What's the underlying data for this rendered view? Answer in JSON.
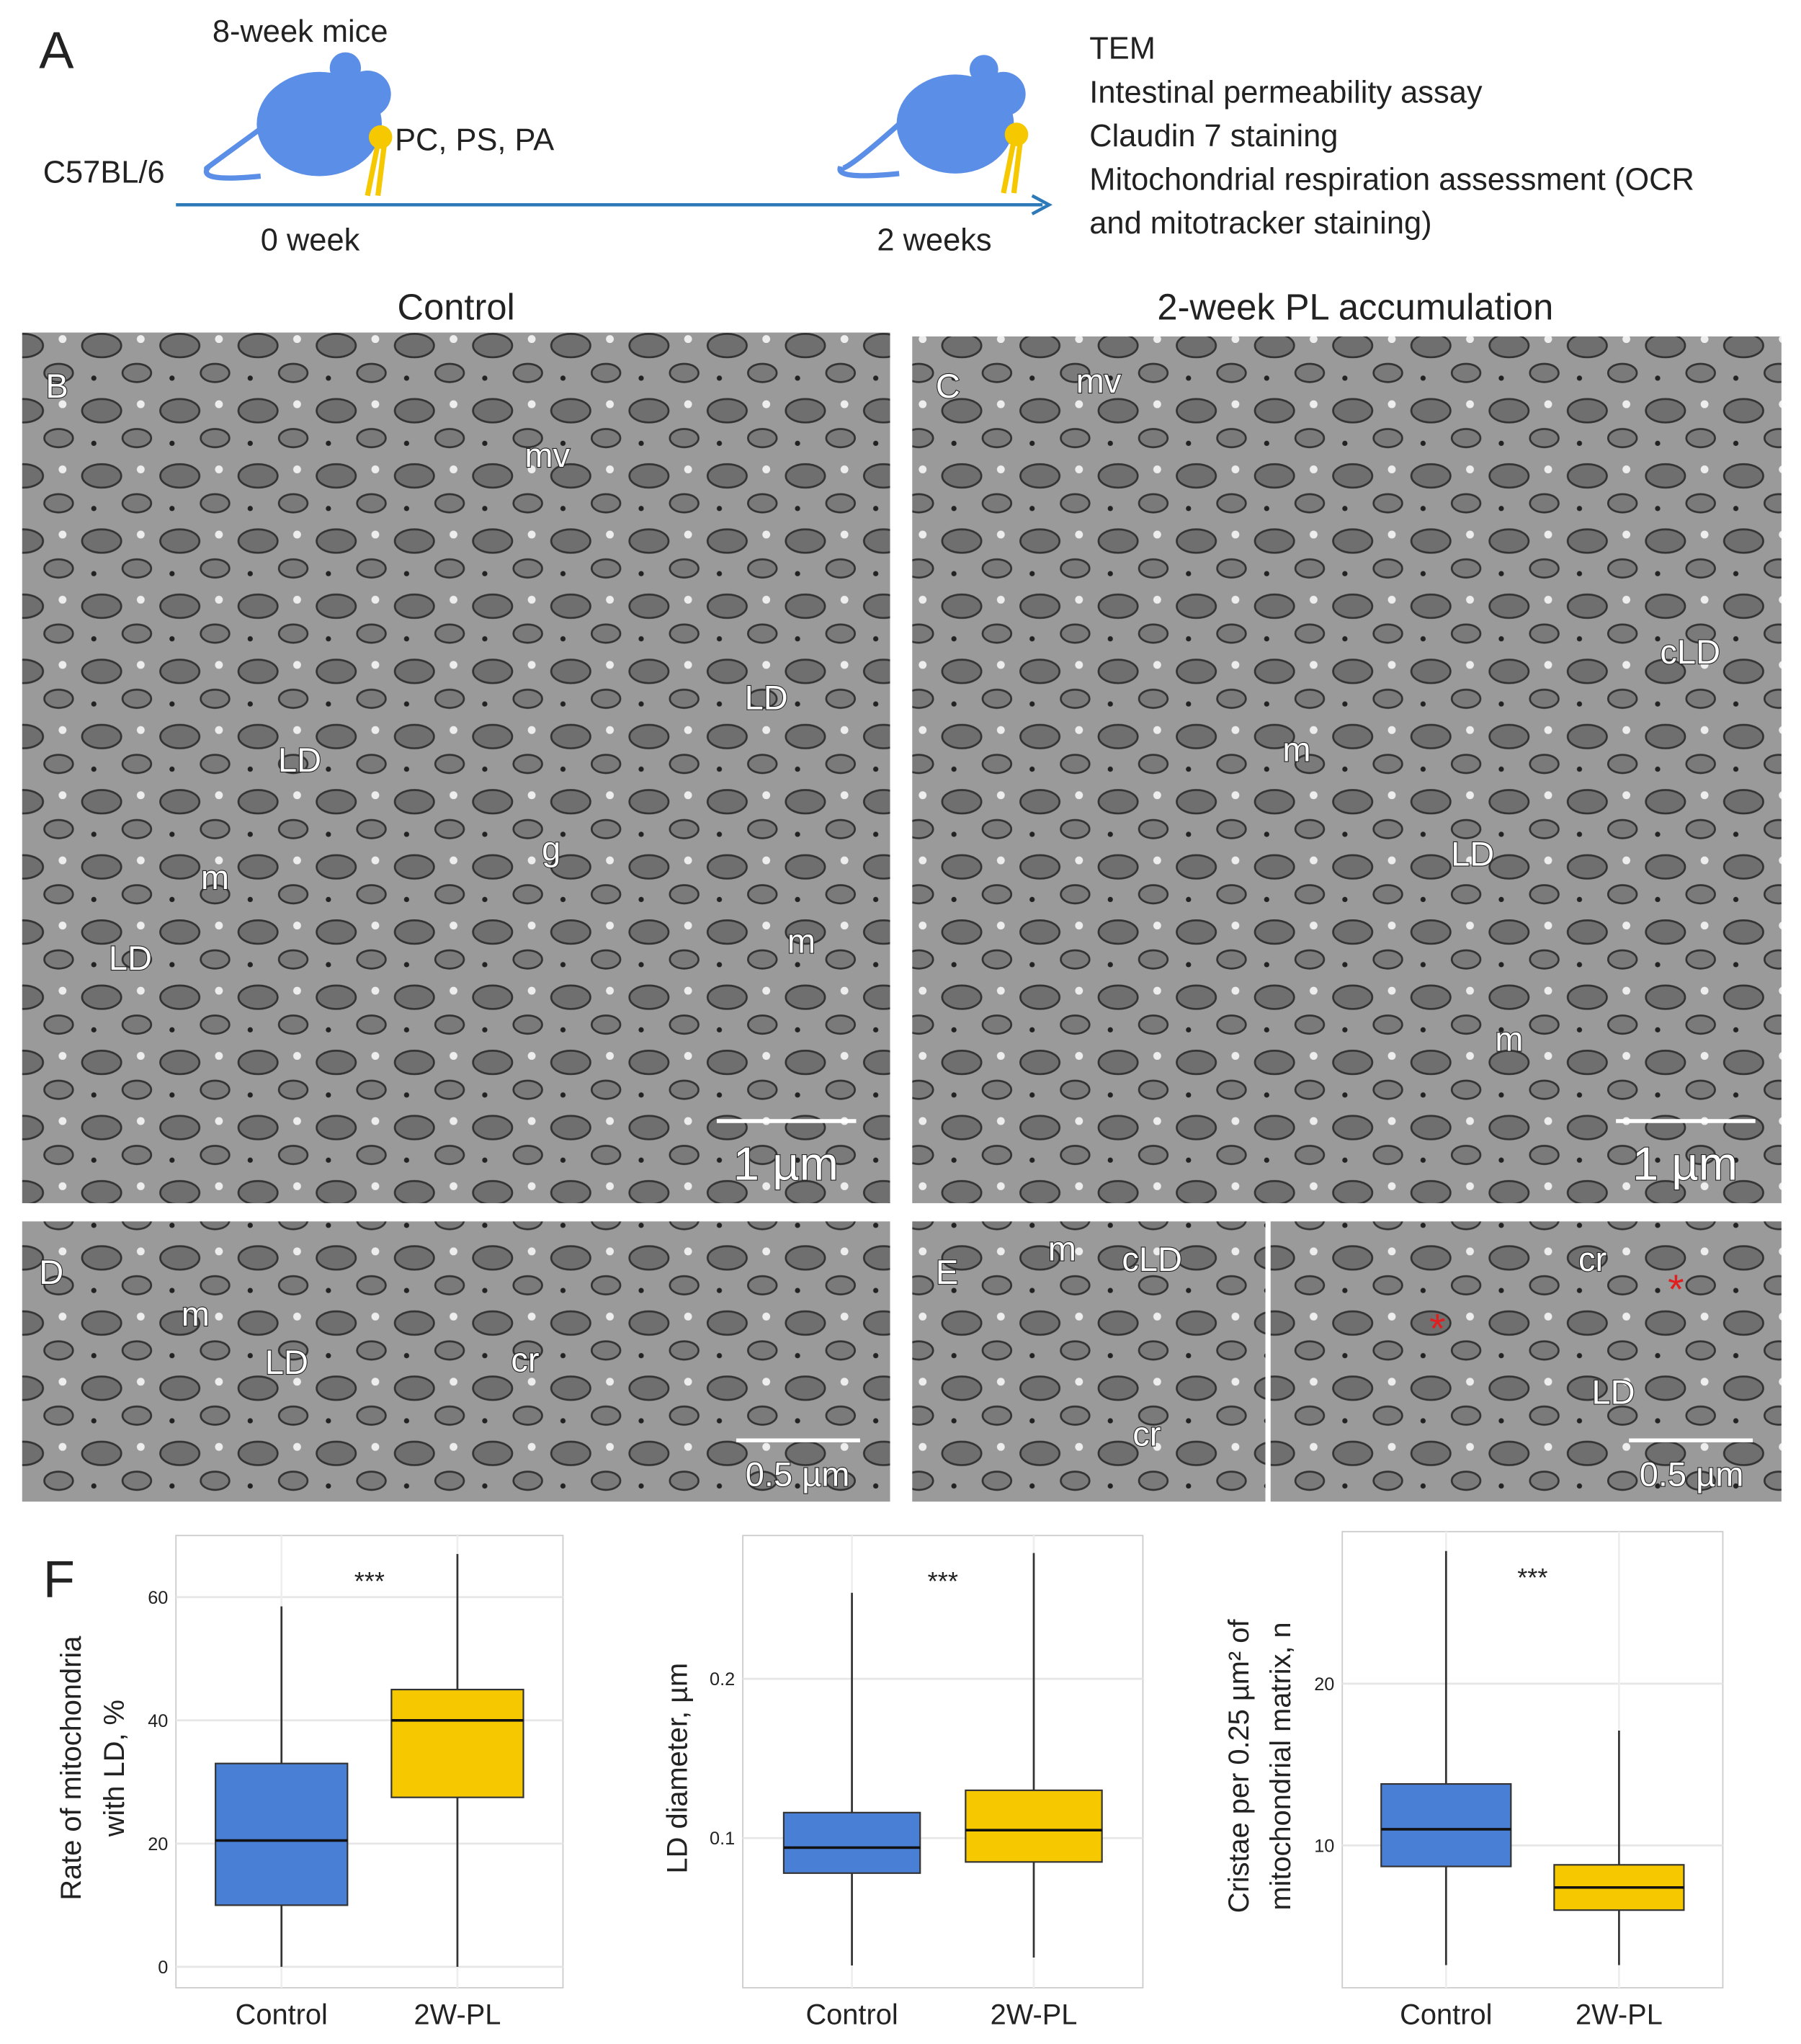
{
  "panel_labels": [
    "A",
    "B",
    "C",
    "D",
    "E",
    "F"
  ],
  "schematic": {
    "strain": "C57BL/6",
    "age": "8-week mice",
    "treatment": "PC, PS, PA",
    "start": "0 week",
    "end": "2 weeks",
    "assays": [
      "TEM",
      "Intestinal permeability assay",
      "Claudin 7 staining",
      "Mitochondrial respiration assessment (OCR",
      "and mitotracker staining)"
    ]
  },
  "micrographs": {
    "titles": [
      "Control",
      "2-week PL accumulation"
    ],
    "B": {
      "labels": [
        "mv",
        "LD",
        "LD",
        "g",
        "m",
        "LD",
        "m"
      ],
      "scale": "1 µm"
    },
    "C": {
      "labels": [
        "mv",
        "cLD",
        "m",
        "LD",
        "m"
      ],
      "scale": "1 µm"
    },
    "D": {
      "labels": [
        "m",
        "LD",
        "cr"
      ],
      "scale": "0.5 µm"
    },
    "E": {
      "labels": [
        "m",
        "cLD",
        "cr",
        "cr",
        "LD",
        "*",
        "*"
      ],
      "scale": "0.5 µm"
    }
  },
  "chart_data": [
    {
      "type": "box",
      "y_label": [
        "Rate of mitochondria",
        "with LD, %"
      ],
      "annotation": "***",
      "categories": [
        "Control",
        "2W-PL"
      ],
      "colors": [
        "#4a7fd6",
        "#f5c800"
      ],
      "min": [
        0,
        0
      ],
      "q1": [
        10,
        27.5
      ],
      "median": [
        20.5,
        40
      ],
      "q3": [
        33,
        45
      ],
      "max": [
        58.5,
        67
      ],
      "ylim": [
        -3.4,
        70
      ],
      "yticks": [
        0,
        20,
        40,
        60
      ],
      "grid": true
    },
    {
      "type": "box",
      "y_label": [
        "LD diameter, µm"
      ],
      "annotation": "***",
      "categories": [
        "Control",
        "2W-PL"
      ],
      "colors": [
        "#4a7fd6",
        "#f5c800"
      ],
      "min": [
        0.02,
        0.025
      ],
      "q1": [
        0.078,
        0.085
      ],
      "median": [
        0.094,
        0.105
      ],
      "q3": [
        0.116,
        0.13
      ],
      "max": [
        0.254,
        0.279
      ],
      "ylim": [
        0.006,
        0.29
      ],
      "yticks": [
        0.1,
        0.2
      ],
      "grid": true
    },
    {
      "type": "box",
      "y_label": [
        "Cristae per 0.25 µm² of",
        "mitochondrial matrix, n"
      ],
      "annotation": "***",
      "categories": [
        "Control",
        "2W-PL"
      ],
      "colors": [
        "#4a7fd6",
        "#f5c800"
      ],
      "min": [
        2.6,
        2.6
      ],
      "q1": [
        8.7,
        6.0
      ],
      "median": [
        11.0,
        7.4
      ],
      "q3": [
        13.8,
        8.8
      ],
      "max": [
        28.2,
        17.1
      ],
      "ylim": [
        1.2,
        29.4
      ],
      "yticks": [
        10,
        20
      ],
      "grid": true
    }
  ]
}
